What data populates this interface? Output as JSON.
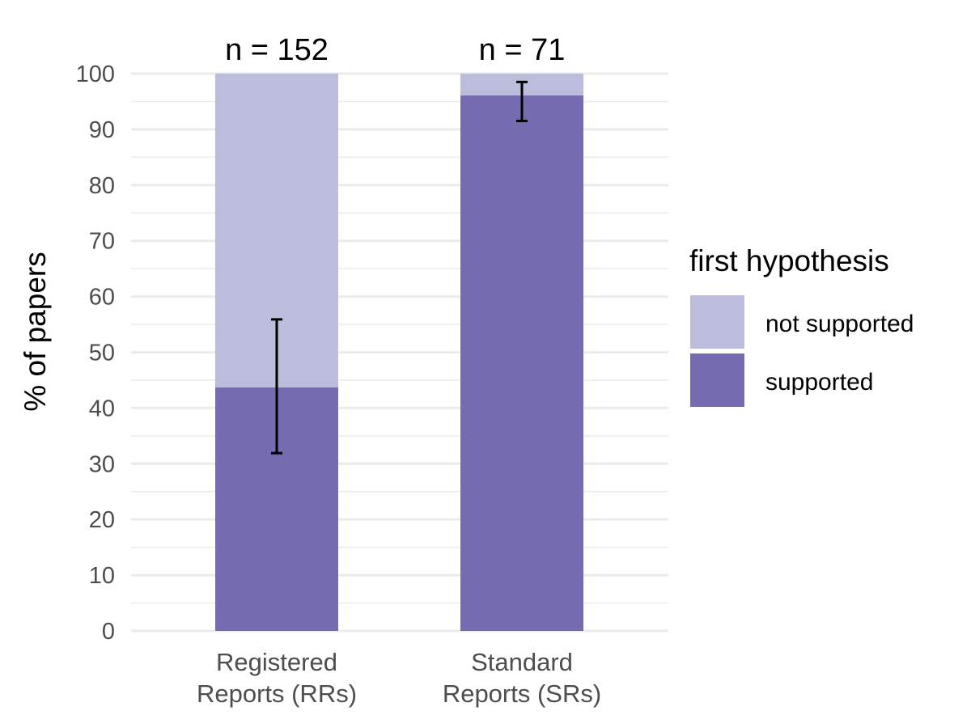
{
  "chart_data": {
    "type": "bar",
    "stacked": true,
    "categories": [
      [
        "Registered",
        "Reports (RRs)"
      ],
      [
        "Standard",
        "Reports (SRs)"
      ]
    ],
    "series": [
      {
        "name": "supported",
        "values": [
          43.7,
          96.1
        ],
        "color": "#756bb1"
      },
      {
        "name": "not supported",
        "values": [
          56.3,
          3.9
        ],
        "color": "#bcbddc"
      }
    ],
    "error_bars": [
      {
        "category": 0,
        "low": 31.9,
        "high": 55.9
      },
      {
        "category": 1,
        "low": 91.5,
        "high": 98.5
      }
    ],
    "bar_annotations": [
      "n = 152",
      "n = 71"
    ],
    "ylabel": "% of papers",
    "xlabel": "",
    "ylim": [
      0,
      100
    ],
    "yticks": [
      0,
      10,
      20,
      30,
      40,
      50,
      60,
      70,
      80,
      90,
      100
    ],
    "grid": true,
    "legend": {
      "title": "first hypothesis",
      "position": "right",
      "entries": [
        {
          "label": "not supported",
          "color": "#bcbddc"
        },
        {
          "label": "supported",
          "color": "#756bb1"
        }
      ]
    },
    "grid_color": "#ebebeb",
    "error_bar_color": "#000000"
  }
}
